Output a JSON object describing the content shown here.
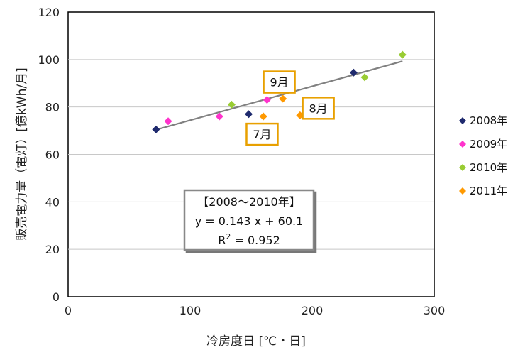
{
  "chart_data": {
    "type": "scatter",
    "title": "",
    "xlabel": "冷房度日 [℃・日]",
    "ylabel": "販売電力量（電灯）[億kWh/月]",
    "xlim": [
      0,
      300
    ],
    "ylim": [
      0,
      120
    ],
    "xticks": [
      "0",
      "100",
      "200",
      "300"
    ],
    "yticks": [
      "0",
      "20",
      "40",
      "60",
      "80",
      "100",
      "120"
    ],
    "grid": "horizontal",
    "legend_position": "right",
    "series": [
      {
        "name": "2008年",
        "color": "#1f2a6e",
        "marker": "diamond",
        "points": [
          [
            72,
            70.5
          ],
          [
            148,
            77
          ],
          [
            234,
            94.5
          ]
        ]
      },
      {
        "name": "2009年",
        "color": "#ff33cc",
        "marker": "diamond",
        "points": [
          [
            82,
            74
          ],
          [
            124,
            76
          ],
          [
            163,
            83
          ]
        ]
      },
      {
        "name": "2010年",
        "color": "#99cc33",
        "marker": "diamond",
        "points": [
          [
            134,
            81
          ],
          [
            243,
            92.5
          ],
          [
            274,
            102
          ]
        ]
      },
      {
        "name": "2011年",
        "color": "#ff9900",
        "marker": "diamond",
        "points": [
          [
            160,
            76
          ],
          [
            176,
            83.5
          ],
          [
            190,
            76.5
          ]
        ]
      }
    ],
    "trendline": {
      "x_start": 72,
      "x_end": 274,
      "slope": 0.143,
      "intercept": 60.1,
      "color": "#808080"
    },
    "annotations": [
      {
        "text": "9月",
        "x": 173,
        "y": 90.5,
        "border_color": "#e8a000"
      },
      {
        "text": "8月",
        "x": 205,
        "y": 79.5,
        "border_color": "#e8a000"
      },
      {
        "text": "7月",
        "x": 159,
        "y": 68.5,
        "border_color": "#e8a000"
      }
    ],
    "equation_box": {
      "line1": "【2008～2010年】",
      "line2": "y = 0.143 x + 60.1",
      "line3_prefix": "R",
      "line3_sup": "2",
      "line3_suffix": " = 0.952"
    }
  }
}
